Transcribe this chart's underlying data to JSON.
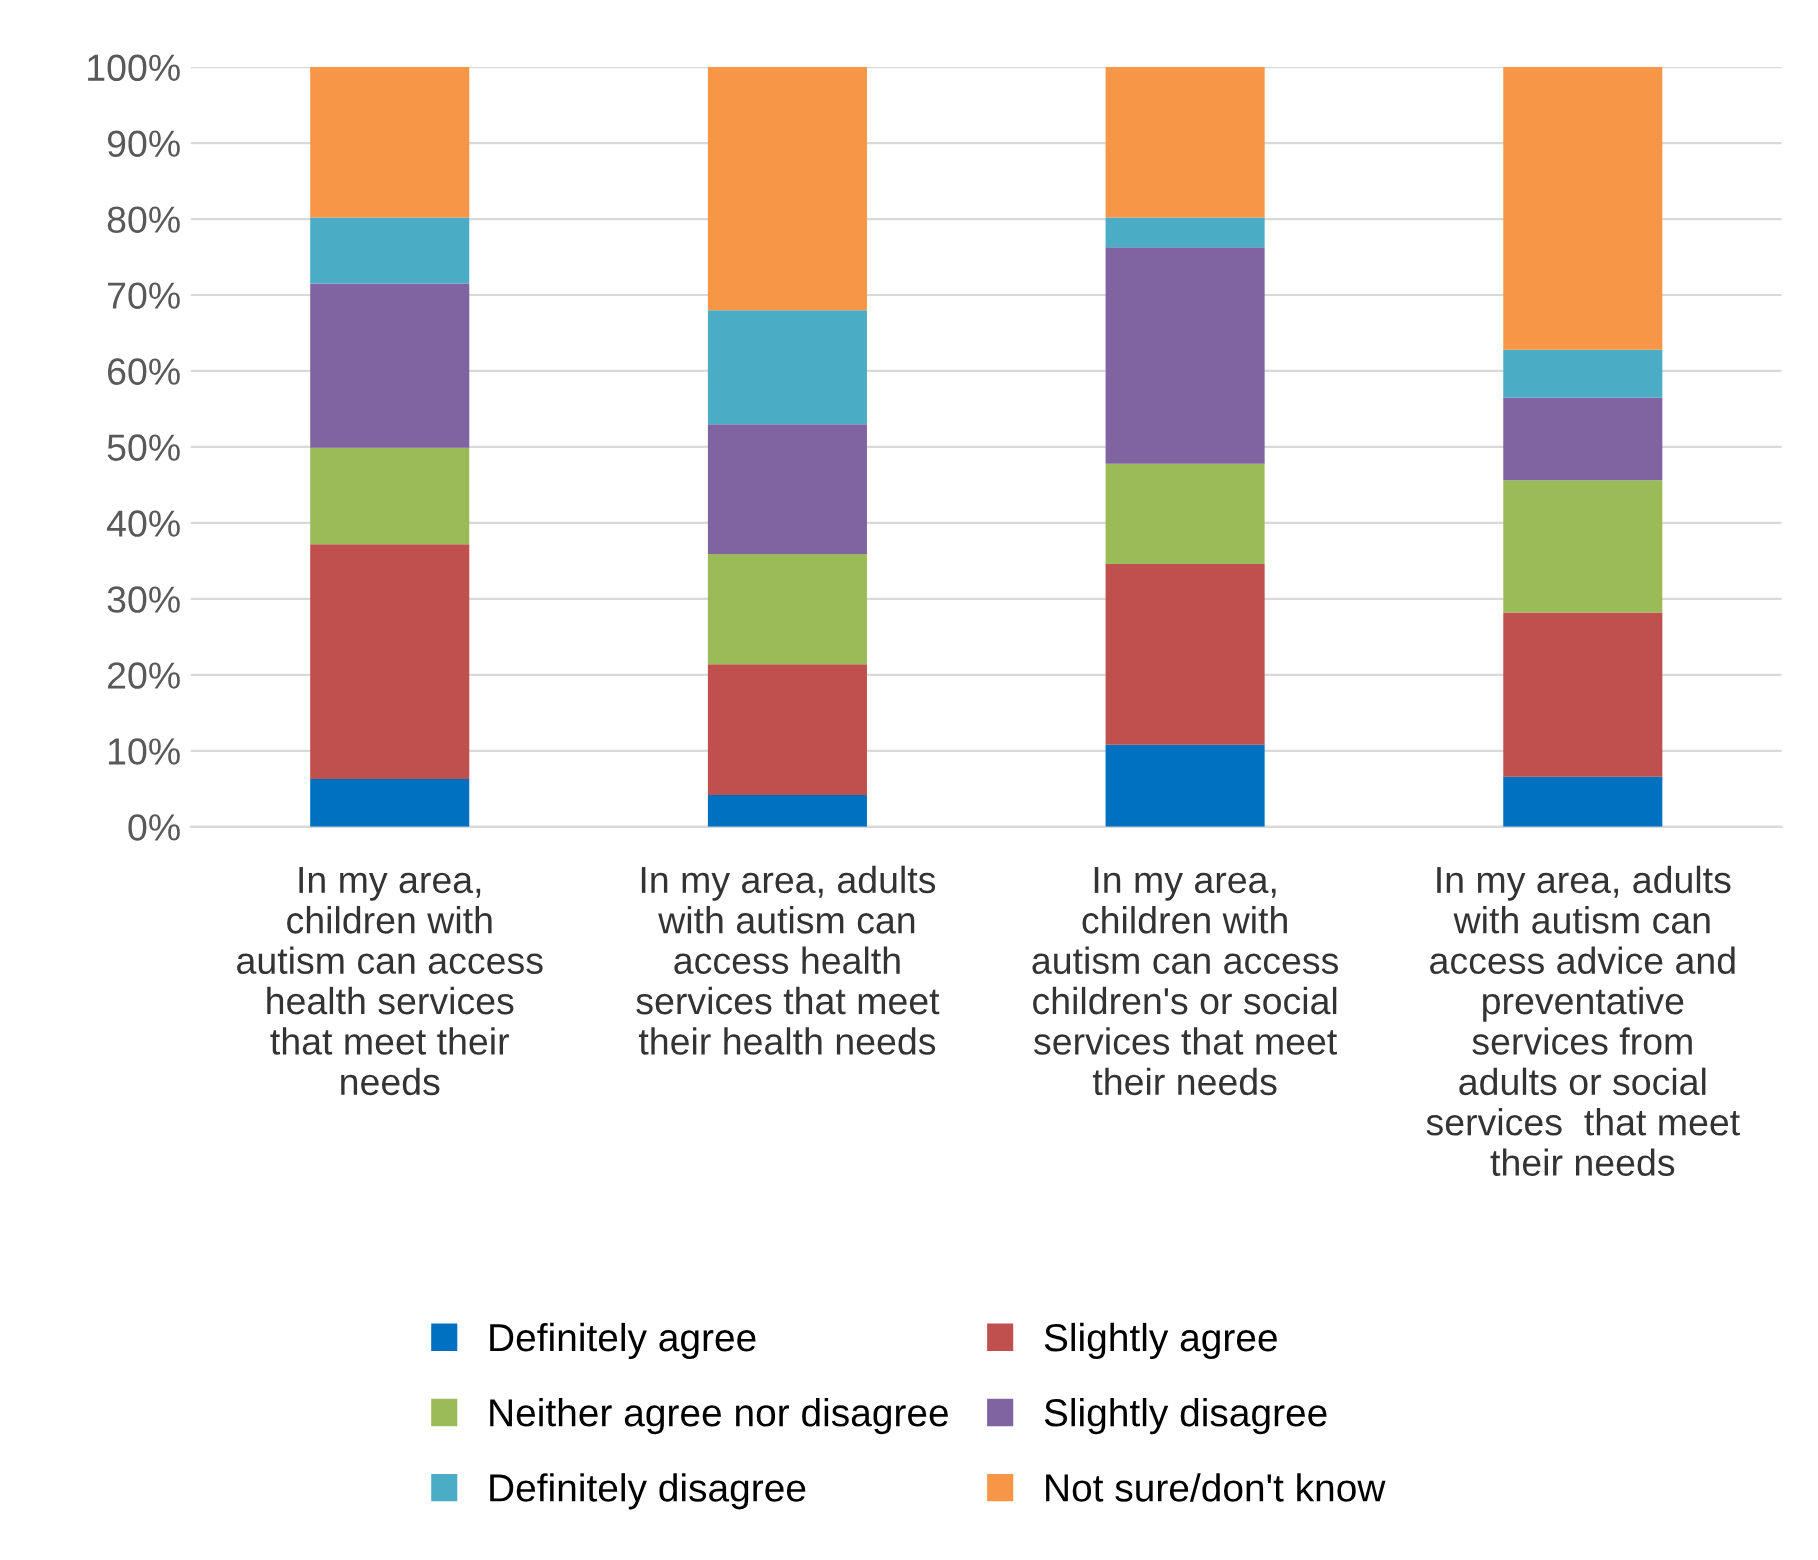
{
  "chart_data": {
    "type": "bar",
    "stacked": true,
    "categories": [
      "In my area,\nchildren with\nautism can access\nhealth services\nthat meet their\nneeds",
      "In my area, adults\nwith autism can\naccess health\nservices that meet\ntheir health needs",
      "In my area,\nchildren with\nautism can access\nchildren's or social\nservices that meet\ntheir needs",
      "In my area, adults\nwith autism can\naccess advice and\npreventative\nservices from\nadults or social\nservices  that meet\ntheir needs"
    ],
    "series": [
      {
        "name": "Definitely agree",
        "color": "#0070c0",
        "values": [
          6.3,
          4.2,
          10.8,
          6.6
        ]
      },
      {
        "name": "Slightly agree",
        "color": "#c0504d",
        "values": [
          30.9,
          17.2,
          23.8,
          21.6
        ]
      },
      {
        "name": "Neither agree nor disagree",
        "color": "#9bbb59",
        "values": [
          12.7,
          14.5,
          13.2,
          17.4
        ]
      },
      {
        "name": "Slightly disagree",
        "color": "#8064a2",
        "values": [
          21.6,
          17.1,
          28.5,
          10.9
        ]
      },
      {
        "name": "Definitely disagree",
        "color": "#4bacc6",
        "values": [
          8.7,
          15.0,
          3.9,
          6.3
        ]
      },
      {
        "name": "Not sure/don't know",
        "color": "#f79646",
        "values": [
          19.8,
          32.0,
          19.8,
          37.2
        ]
      }
    ],
    "ylim": [
      0,
      100
    ],
    "yticks": [
      {
        "value": 0,
        "label": "0%"
      },
      {
        "value": 10,
        "label": "10%"
      },
      {
        "value": 20,
        "label": "20%"
      },
      {
        "value": 30,
        "label": "30%"
      },
      {
        "value": 40,
        "label": "40%"
      },
      {
        "value": 50,
        "label": "50%"
      },
      {
        "value": 60,
        "label": "60%"
      },
      {
        "value": 70,
        "label": "70%"
      },
      {
        "value": 80,
        "label": "80%"
      },
      {
        "value": 90,
        "label": "90%"
      },
      {
        "value": 100,
        "label": "100%"
      }
    ],
    "grid": "y",
    "legend": "bottom"
  }
}
